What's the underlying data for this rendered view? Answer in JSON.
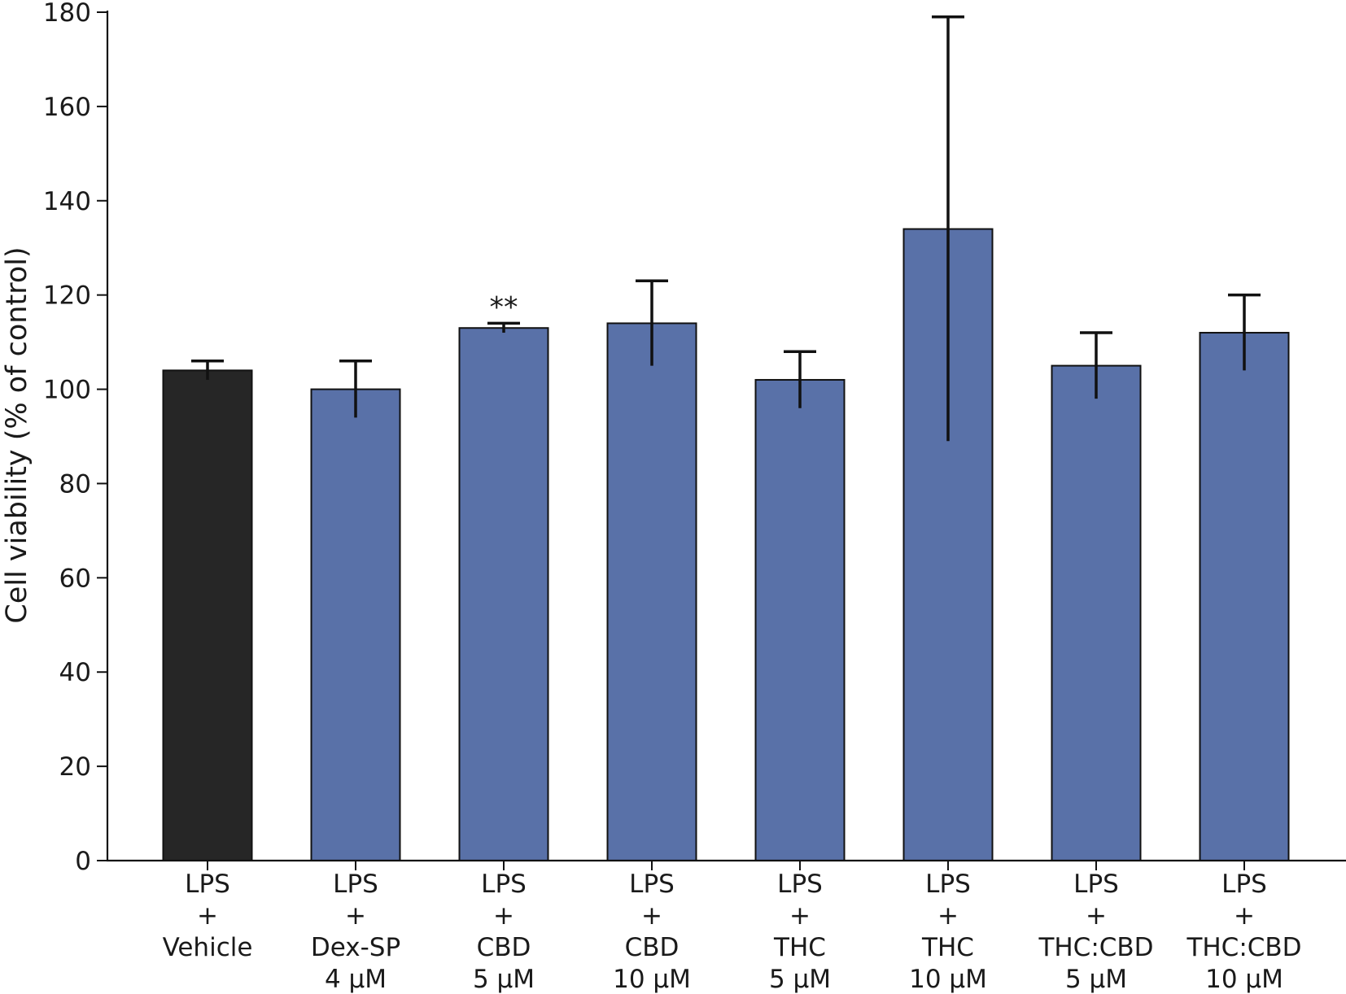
{
  "chart_data": {
    "type": "bar",
    "categories": [
      [
        "LPS",
        "+",
        "Vehicle"
      ],
      [
        "LPS",
        "+",
        "Dex-SP",
        "4 µM"
      ],
      [
        "LPS",
        "+",
        "CBD",
        "5 µM"
      ],
      [
        "LPS",
        "+",
        "CBD",
        "10 µM"
      ],
      [
        "LPS",
        "+",
        "THC",
        "5 µM"
      ],
      [
        "LPS",
        "+",
        "THC",
        "10 µM"
      ],
      [
        "LPS",
        "+",
        "THC:CBD",
        "5 µM"
      ],
      [
        "LPS",
        "+",
        "THC:CBD",
        "10 µM"
      ]
    ],
    "values": [
      104,
      100,
      113,
      114,
      102,
      134,
      105,
      112
    ],
    "error_lower": [
      102,
      94,
      112,
      105,
      96,
      89,
      98,
      104
    ],
    "error_upper": [
      106,
      106,
      114,
      123,
      108,
      179,
      112,
      120
    ],
    "annotations": [
      {
        "category_index": 2,
        "text": "**"
      }
    ],
    "bar_colors": [
      "#262626",
      "#5971a8",
      "#5971a8",
      "#5971a8",
      "#5971a8",
      "#5971a8",
      "#5971a8",
      "#5971a8"
    ],
    "title": "",
    "xlabel": "",
    "ylabel": "Cell viability (% of control)",
    "ylim": [
      0,
      180
    ],
    "yticks": [
      0,
      20,
      40,
      60,
      80,
      100,
      120,
      140,
      160,
      180
    ],
    "grid": false,
    "legend": "none"
  }
}
